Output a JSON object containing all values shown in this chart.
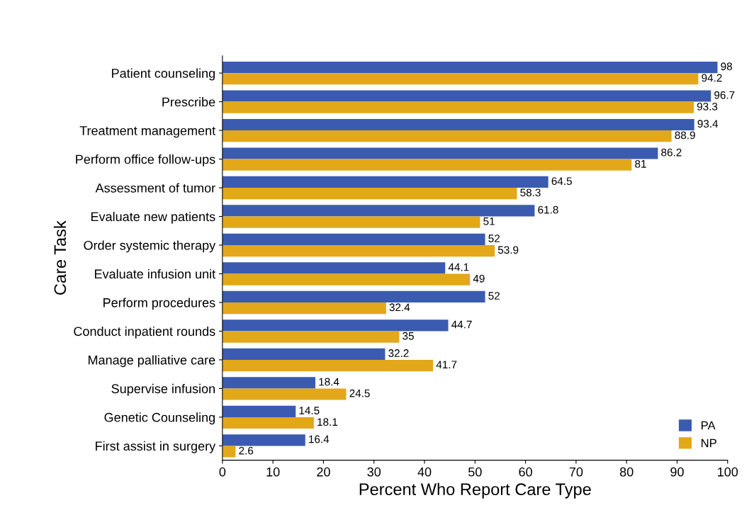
{
  "chart_data": {
    "type": "bar",
    "orientation": "horizontal",
    "xlabel": "Percent Who Report Care Type",
    "ylabel": "Care Task",
    "categories": [
      "Patient counseling",
      "Prescribe",
      "Treatment management",
      "Perform office follow-ups",
      "Assessment of tumor",
      "Evaluate new patients",
      "Order systemic therapy",
      "Evaluate infusion unit",
      "Perform procedures",
      "Conduct inpatient rounds",
      "Manage palliative care",
      "Supervise infusion",
      "Genetic Counseling",
      "First assist in surgery"
    ],
    "series": [
      {
        "name": "PA",
        "color": "#3a5bb0",
        "values": [
          98,
          96.7,
          93.4,
          86.2,
          64.5,
          61.8,
          52,
          44.1,
          52,
          44.7,
          32.2,
          18.4,
          14.5,
          16.4
        ]
      },
      {
        "name": "NP",
        "color": "#e3a71a",
        "values": [
          94.2,
          93.3,
          88.9,
          81,
          58.3,
          51,
          53.9,
          49,
          32.4,
          35,
          41.7,
          24.5,
          18.1,
          2.6
        ]
      }
    ],
    "xlim": [
      0,
      100
    ],
    "xticks": [
      0,
      10,
      20,
      30,
      40,
      50,
      60,
      70,
      80,
      90,
      100
    ],
    "grid": false,
    "legend": "bottom right",
    "data_labels": true
  }
}
